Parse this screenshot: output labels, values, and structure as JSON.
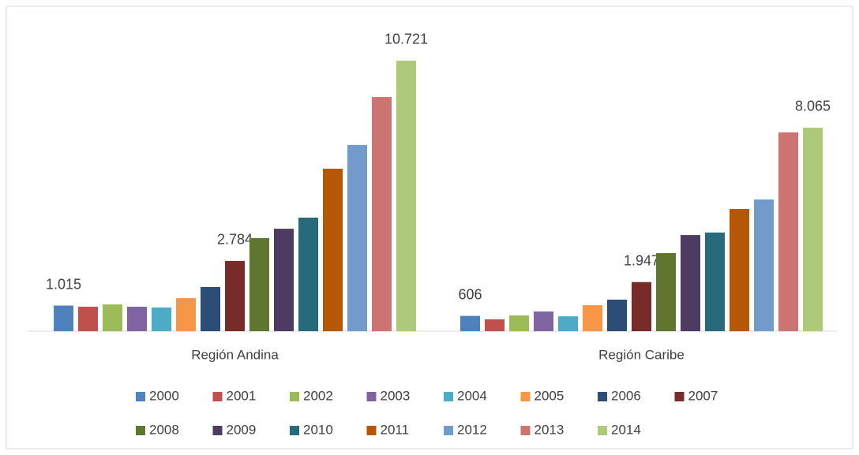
{
  "chart_data": {
    "type": "bar",
    "categories": [
      "Región Andina",
      "Región Caribe"
    ],
    "ylim": [
      0,
      11000
    ],
    "series": [
      {
        "name": "2000",
        "color": "#4f81bd",
        "values": [
          1015,
          606
        ],
        "value_labels": [
          "1.015",
          "606"
        ]
      },
      {
        "name": "2001",
        "color": "#c0504d",
        "values": [
          970,
          470
        ]
      },
      {
        "name": "2002",
        "color": "#9bbb59",
        "values": [
          1060,
          625
        ]
      },
      {
        "name": "2003",
        "color": "#8064a2",
        "values": [
          970,
          780
        ]
      },
      {
        "name": "2004",
        "color": "#4bacc6",
        "values": [
          940,
          590
        ]
      },
      {
        "name": "2005",
        "color": "#f79646",
        "values": [
          1310,
          1030
        ]
      },
      {
        "name": "2006",
        "color": "#2c4d75",
        "values": [
          1750,
          1250
        ]
      },
      {
        "name": "2007",
        "color": "#772c2a",
        "values": [
          2784,
          1947
        ],
        "value_labels": [
          "2.784",
          "1.947"
        ]
      },
      {
        "name": "2008",
        "color": "#5f7530",
        "values": [
          3690,
          3095
        ]
      },
      {
        "name": "2009",
        "color": "#4d3b62",
        "values": [
          4060,
          3810
        ]
      },
      {
        "name": "2010",
        "color": "#276a7c",
        "values": [
          4500,
          3910
        ]
      },
      {
        "name": "2011",
        "color": "#b65708",
        "values": [
          6440,
          4845
        ]
      },
      {
        "name": "2012",
        "color": "#729aca",
        "values": [
          7380,
          5220
        ]
      },
      {
        "name": "2013",
        "color": "#cd7371",
        "values": [
          9280,
          7880
        ]
      },
      {
        "name": "2014",
        "color": "#afc97a",
        "values": [
          10721,
          8065
        ],
        "value_labels": [
          "10.721",
          "8.065"
        ]
      }
    ]
  }
}
